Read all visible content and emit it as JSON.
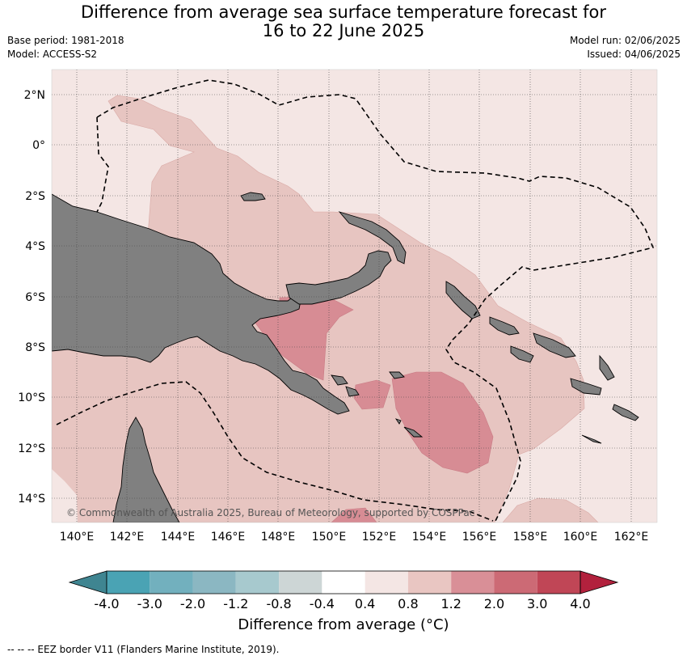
{
  "title_line1": "Difference from average sea surface temperature forecast for",
  "title_line2": "16 to 22 June 2025",
  "base_period": "Base period: 1981-2018",
  "model": "Model: ACCESS-S2",
  "model_run": "Model run: 02/06/2025",
  "issued": "Issued: 04/06/2025",
  "copyright": "© Commonwealth of Australia 2025, Bureau of Meteorology, supported by COSPPac",
  "lat_ticks": [
    "2°N",
    "0°",
    "2°S",
    "4°S",
    "6°S",
    "8°S",
    "10°S",
    "12°S",
    "14°S"
  ],
  "lon_ticks": [
    "140°E",
    "142°E",
    "144°E",
    "146°E",
    "148°E",
    "150°E",
    "152°E",
    "154°E",
    "156°E",
    "158°E",
    "160°E",
    "162°E"
  ],
  "colorbar": {
    "title": "Difference from average (°C)",
    "labels": [
      "-4.0",
      "-3.0",
      "-2.0",
      "-1.2",
      "-0.8",
      "-0.4",
      "0.4",
      "0.8",
      "1.2",
      "2.0",
      "3.0",
      "4.0"
    ],
    "colors": [
      "#3f8591",
      "#4aa3b4",
      "#72b0be",
      "#8bb7c2",
      "#a7c9ce",
      "#cdd6d6",
      "#ffffff",
      "#f4e6e4",
      "#e9c6c2",
      "#d98f97",
      "#cc6a75",
      "#c04656",
      "#b2213d"
    ]
  },
  "footer": "-- -- -- EEZ border V11 (Flanders Marine Institute, 2019)."
}
